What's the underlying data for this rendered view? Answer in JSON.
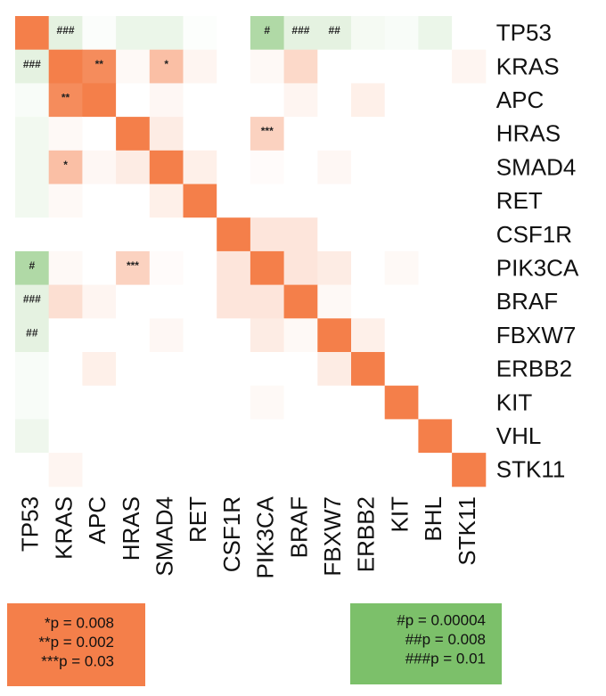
{
  "chart_data": {
    "type": "heatmap",
    "y_categories": [
      "TP53",
      "KRAS",
      "APC",
      "HRAS",
      "SMAD4",
      "RET",
      "CSF1R",
      "PIK3CA",
      "BRAF",
      "FBXW7",
      "ERBB2",
      "KIT",
      "VHL",
      "STK11"
    ],
    "x_categories": [
      "TP53",
      "KRAS",
      "APC",
      "HRAS",
      "SMAD4",
      "RET",
      "CSF1R",
      "PIK3CA",
      "BRAF",
      "FBXW7",
      "ERBB2",
      "KIT",
      "BHL",
      "STK11"
    ],
    "values": [
      [
        1,
        -0.2,
        -0.03,
        -0.15,
        -0.15,
        -0.02,
        0,
        -0.6,
        -0.2,
        -0.2,
        -0.08,
        -0.05,
        -0.15,
        0
      ],
      [
        -0.2,
        1,
        0.9,
        0.05,
        0.5,
        0.08,
        0,
        0.05,
        0.3,
        0,
        0,
        0,
        0,
        0.08
      ],
      [
        -0.05,
        0.9,
        1,
        0,
        0.06,
        0,
        0,
        0,
        0.08,
        0,
        0.12,
        0,
        0,
        0
      ],
      [
        -0.1,
        0.05,
        0,
        1,
        0.15,
        0,
        0,
        0.35,
        0,
        0,
        0,
        0,
        0,
        0
      ],
      [
        -0.1,
        0.5,
        0.06,
        0.15,
        1,
        0.12,
        0,
        0.03,
        0,
        0.06,
        0,
        0,
        0,
        0
      ],
      [
        -0.1,
        0.05,
        0,
        0,
        0.12,
        1,
        0,
        0,
        0,
        0,
        0,
        0,
        0,
        0
      ],
      [
        0,
        0,
        0,
        0,
        0,
        0,
        1,
        0.2,
        0.2,
        0,
        0,
        0,
        0,
        0
      ],
      [
        -0.6,
        0.05,
        0,
        0.35,
        0.03,
        0,
        0.2,
        1,
        0.2,
        0.15,
        0,
        0.05,
        0,
        0
      ],
      [
        -0.2,
        0.25,
        0.08,
        0,
        0,
        0,
        0.2,
        0.2,
        1,
        0.05,
        0,
        0,
        0,
        0
      ],
      [
        -0.2,
        0,
        0,
        0,
        0.06,
        0,
        0,
        0.15,
        0.05,
        1,
        0.12,
        0,
        0,
        0
      ],
      [
        -0.05,
        0,
        0.12,
        0,
        0,
        0,
        0,
        0,
        0,
        0.15,
        1,
        0,
        0,
        0
      ],
      [
        -0.05,
        0,
        0,
        0,
        0,
        0,
        0,
        0.05,
        0,
        0,
        0,
        1,
        0,
        0
      ],
      [
        -0.12,
        0,
        0,
        0,
        0,
        0,
        0,
        0,
        0,
        0,
        0,
        0,
        1,
        0
      ],
      [
        0,
        0.08,
        0,
        0,
        0,
        0,
        0,
        0,
        0,
        0,
        0,
        0,
        0,
        1
      ]
    ],
    "cell_labels": [
      [
        null,
        "###",
        null,
        null,
        null,
        null,
        null,
        "#",
        "###",
        "##",
        null,
        null,
        null,
        null
      ],
      [
        "###",
        null,
        "**",
        null,
        "*",
        null,
        null,
        null,
        null,
        null,
        null,
        null,
        null,
        null
      ],
      [
        null,
        "**",
        null,
        null,
        null,
        null,
        null,
        null,
        null,
        null,
        null,
        null,
        null,
        null
      ],
      [
        null,
        null,
        null,
        null,
        null,
        null,
        null,
        "***",
        null,
        null,
        null,
        null,
        null,
        null
      ],
      [
        null,
        "*",
        null,
        null,
        null,
        null,
        null,
        null,
        null,
        null,
        null,
        null,
        null,
        null
      ],
      [
        null,
        null,
        null,
        null,
        null,
        null,
        null,
        null,
        null,
        null,
        null,
        null,
        null,
        null
      ],
      [
        null,
        null,
        null,
        null,
        null,
        null,
        null,
        null,
        null,
        null,
        null,
        null,
        null,
        null
      ],
      [
        "#",
        null,
        null,
        "***",
        null,
        null,
        null,
        null,
        null,
        null,
        null,
        null,
        null,
        null
      ],
      [
        "###",
        null,
        null,
        null,
        null,
        null,
        null,
        null,
        null,
        null,
        null,
        null,
        null,
        null
      ],
      [
        "##",
        null,
        null,
        null,
        null,
        null,
        null,
        null,
        null,
        null,
        null,
        null,
        null,
        null
      ],
      [
        null,
        null,
        null,
        null,
        null,
        null,
        null,
        null,
        null,
        null,
        null,
        null,
        null,
        null
      ],
      [
        null,
        null,
        null,
        null,
        null,
        null,
        null,
        null,
        null,
        null,
        null,
        null,
        null,
        null
      ],
      [
        null,
        null,
        null,
        null,
        null,
        null,
        null,
        null,
        null,
        null,
        null,
        null,
        null,
        null
      ],
      [
        null,
        null,
        null,
        null,
        null,
        null,
        null,
        null,
        null,
        null,
        null,
        null,
        null,
        null
      ]
    ],
    "positive_color": "#f47f4a",
    "negative_color": "#7cc06a",
    "legend_positive": [
      "*p = 0.008",
      "**p = 0.002",
      "***p = 0.03"
    ],
    "legend_negative": [
      "#p = 0.00004",
      "##p = 0.008",
      "###p = 0.01"
    ]
  }
}
